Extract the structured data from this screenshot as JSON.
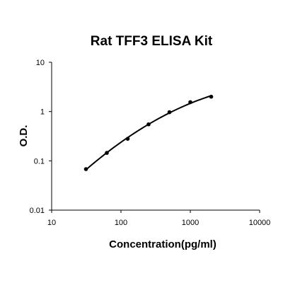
{
  "chart_data": {
    "type": "scatter",
    "title": "Rat TFF3 ELISA Kit",
    "xlabel": "Concentration(pg/ml)",
    "ylabel": "O.D.",
    "xscale": "log",
    "yscale": "log",
    "xlim": [
      10,
      10000
    ],
    "ylim": [
      0.01,
      10
    ],
    "x_ticks": [
      "10",
      "100",
      "1000",
      "10000"
    ],
    "y_ticks": [
      "0.01",
      "0.1",
      "1",
      "10"
    ],
    "grid": false,
    "legend": "none",
    "fit_curve": true,
    "series": [
      {
        "x": [
          31.25,
          62.5,
          125,
          250,
          500,
          1000,
          2000
        ],
        "y": [
          0.068,
          0.145,
          0.28,
          0.55,
          0.97,
          1.55,
          2.0
        ]
      }
    ]
  }
}
